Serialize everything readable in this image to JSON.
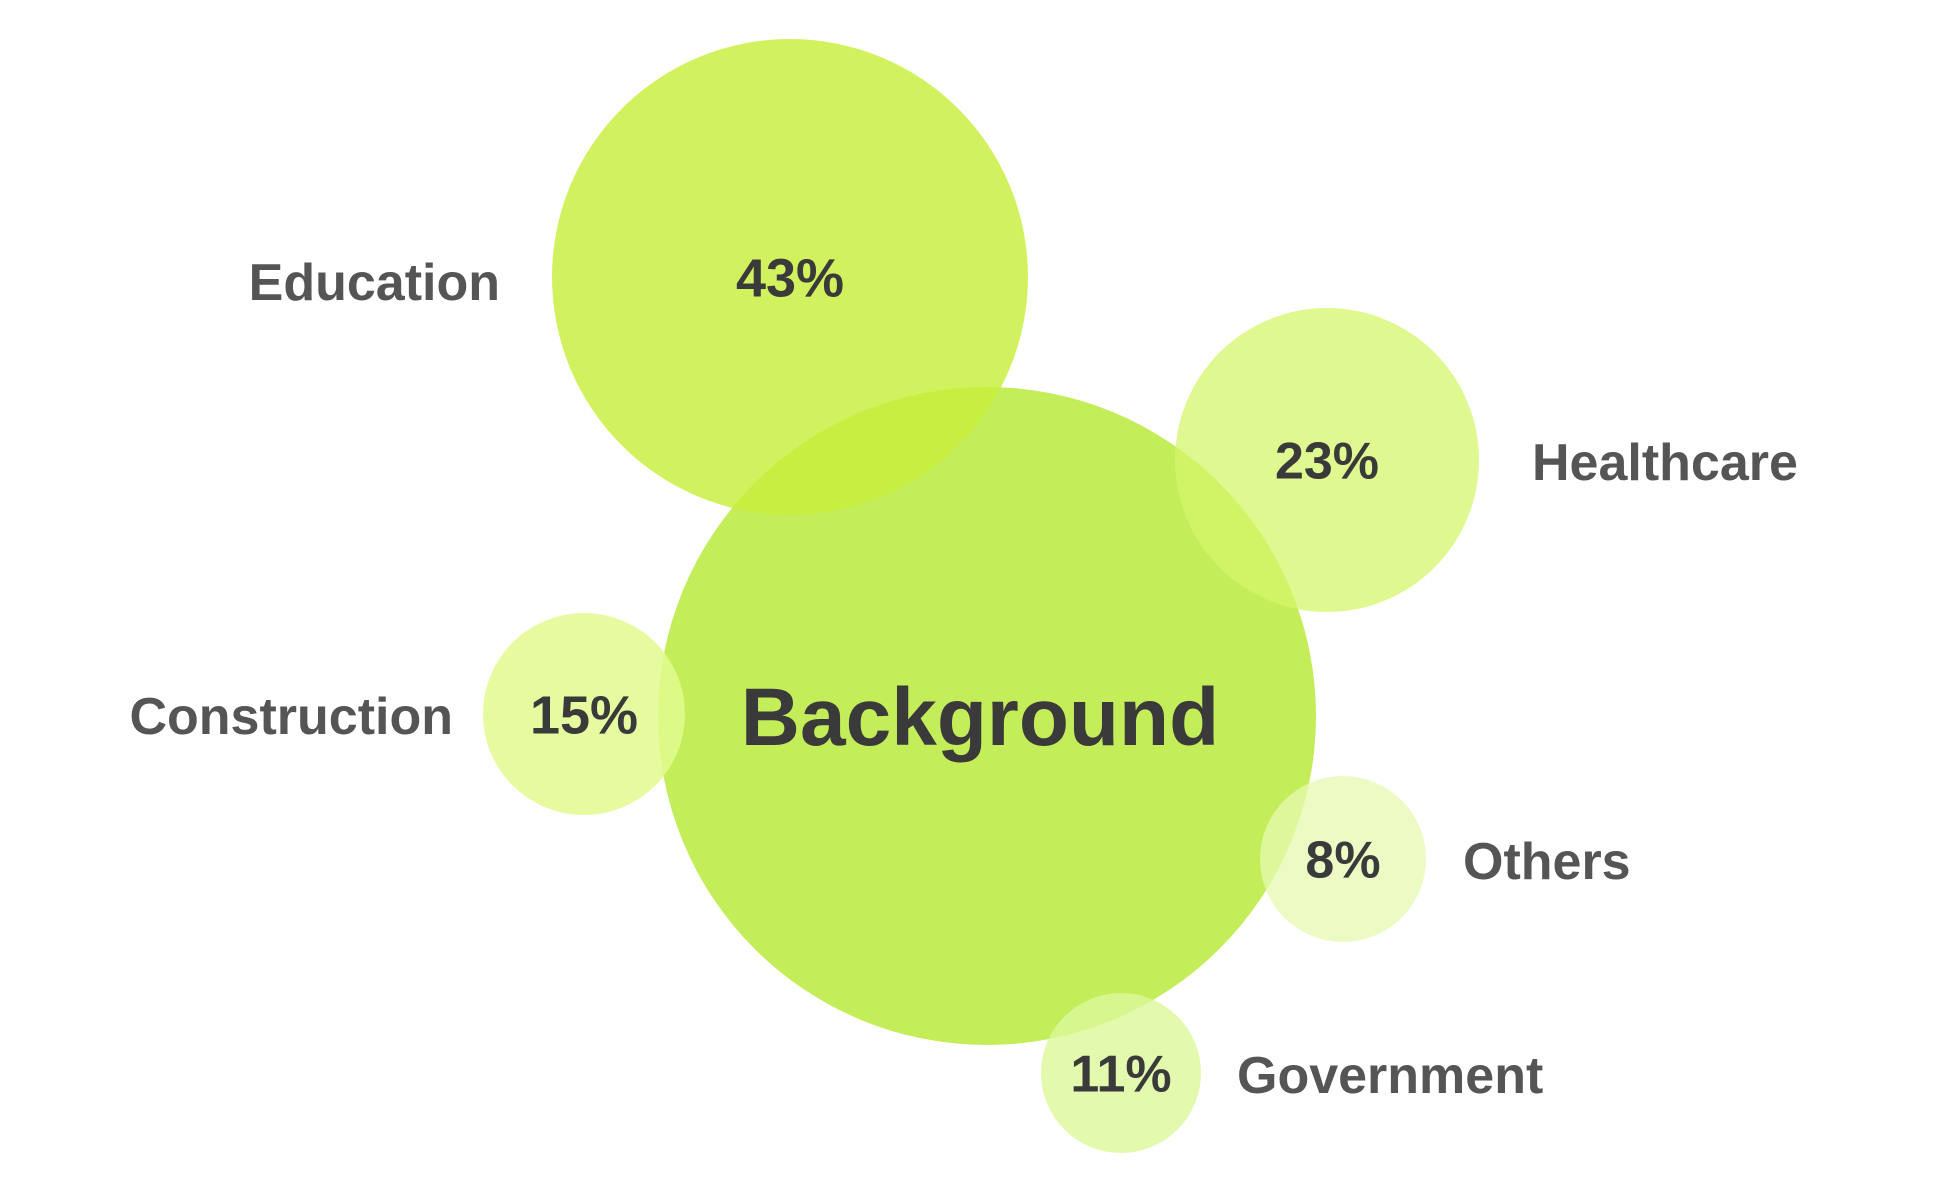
{
  "chart_data": {
    "type": "bubble",
    "center": {
      "label": "Background",
      "color": "#b8ea3c"
    },
    "series": [
      {
        "name": "Education",
        "value": 43,
        "value_label": "43%",
        "color": "#c8ee3a",
        "opacity": 0.82
      },
      {
        "name": "Healthcare",
        "value": 23,
        "value_label": "23%",
        "color": "#d4f66a",
        "opacity": 0.75
      },
      {
        "name": "Construction",
        "value": 15,
        "value_label": "15%",
        "color": "#e2fa8e",
        "opacity": 0.85
      },
      {
        "name": "Others",
        "value": 8,
        "value_label": "8%",
        "color": "#e6fab0",
        "opacity": 0.75
      },
      {
        "name": "Government",
        "value": 11,
        "value_label": "11%",
        "color": "#dcf89a",
        "opacity": 0.8
      }
    ],
    "text_colors": {
      "label": "#555555",
      "value": "#3a3a3a"
    }
  }
}
